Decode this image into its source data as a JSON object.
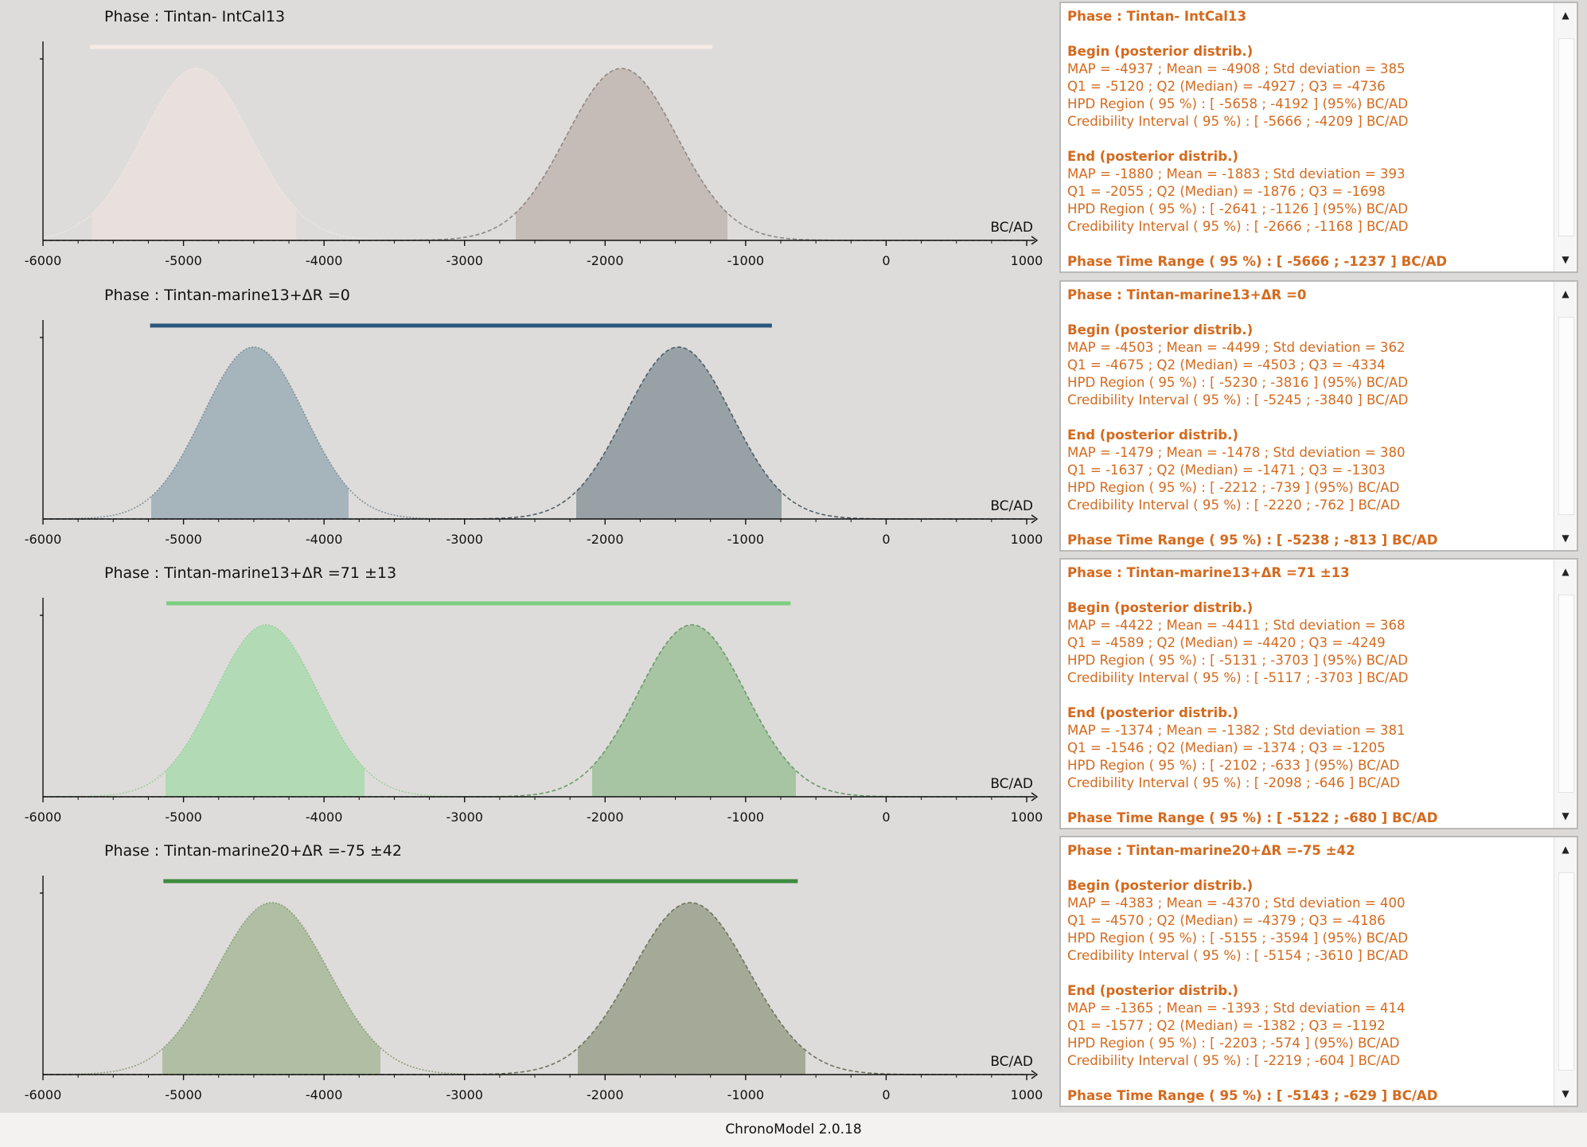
{
  "footer": "ChronoModel 2.0.18",
  "axis_unit": "BC/AD",
  "chart_data": [
    {
      "type": "area",
      "title": "Phase : Tintan- IntCal13",
      "xlabel": "BC/AD",
      "xlim": [
        -6000,
        1000
      ],
      "ticks": [
        "-6000",
        "-5000",
        "-4000",
        "-3000",
        "-2000",
        "-1000",
        "0",
        "1000"
      ],
      "grid": false,
      "range_bar": {
        "from": -5666,
        "to": -1237
      },
      "colors": {
        "bar": "#f6ebe6",
        "begin_fill": "#e9e0dd",
        "begin_line": "#eee6e2",
        "end_fill": "#c5bcb8",
        "end_line": "#8f8784"
      },
      "series": [
        {
          "name": "Begin",
          "mean": -4908,
          "sd": 385,
          "mode": -4937,
          "hpd": [
            -5658,
            -4192
          ]
        },
        {
          "name": "End",
          "mean": -1883,
          "sd": 393,
          "mode": -1880,
          "hpd": [
            -2641,
            -1126
          ]
        }
      ]
    },
    {
      "type": "area",
      "title": "Phase : Tintan-marine13+ΔR =0",
      "xlabel": "BC/AD",
      "xlim": [
        -6000,
        1000
      ],
      "ticks": [
        "-6000",
        "-5000",
        "-4000",
        "-3000",
        "-2000",
        "-1000",
        "0",
        "1000"
      ],
      "grid": false,
      "range_bar": {
        "from": -5238,
        "to": -813
      },
      "colors": {
        "bar": "#2c577d",
        "begin_fill": "#a6b4bb",
        "begin_line": "#7f939f",
        "end_fill": "#97a1a6",
        "end_line": "#4f5e68"
      },
      "series": [
        {
          "name": "Begin",
          "mean": -4499,
          "sd": 362,
          "mode": -4503,
          "hpd": [
            -5230,
            -3816
          ]
        },
        {
          "name": "End",
          "mean": -1478,
          "sd": 380,
          "mode": -1479,
          "hpd": [
            -2212,
            -739
          ]
        }
      ]
    },
    {
      "type": "area",
      "title": "Phase : Tintan-marine13+ΔR =71 ±13",
      "xlabel": "BC/AD",
      "xlim": [
        -6000,
        1000
      ],
      "ticks": [
        "-6000",
        "-5000",
        "-4000",
        "-3000",
        "-2000",
        "-1000",
        "0",
        "1000"
      ],
      "grid": false,
      "range_bar": {
        "from": -5122,
        "to": -680
      },
      "colors": {
        "bar": "#7ccf7e",
        "begin_fill": "#b2dbb5",
        "begin_line": "#9cd09f",
        "end_fill": "#a7c4a3",
        "end_line": "#6a9a6a"
      },
      "series": [
        {
          "name": "Begin",
          "mean": -4411,
          "sd": 368,
          "mode": -4422,
          "hpd": [
            -5131,
            -3703
          ]
        },
        {
          "name": "End",
          "mean": -1382,
          "sd": 381,
          "mode": -1374,
          "hpd": [
            -2102,
            -633
          ]
        }
      ]
    },
    {
      "type": "area",
      "title": "Phase : Tintan-marine20+ΔR =-75 ±42",
      "xlabel": "BC/AD",
      "xlim": [
        -6000,
        1000
      ],
      "ticks": [
        "-6000",
        "-5000",
        "-4000",
        "-3000",
        "-2000",
        "-1000",
        "0",
        "1000"
      ],
      "grid": false,
      "range_bar": {
        "from": -5143,
        "to": -629
      },
      "colors": {
        "bar": "#3f8a3f",
        "begin_fill": "#b0bea3",
        "begin_line": "#8da080",
        "end_fill": "#a5aa98",
        "end_line": "#6b7460"
      },
      "series": [
        {
          "name": "Begin",
          "mean": -4370,
          "sd": 400,
          "mode": -4383,
          "hpd": [
            -5155,
            -3594
          ]
        },
        {
          "name": "End",
          "mean": -1393,
          "sd": 414,
          "mode": -1365,
          "hpd": [
            -2203,
            -574
          ]
        }
      ]
    }
  ],
  "panels": [
    {
      "title": "Phase : Tintan- IntCal13",
      "begin_head": "Begin (posterior distrib.)",
      "begin_lines": [
        "MAP = -4937 ; Mean = -4908 ; Std deviation = 385",
        "Q1 = -5120 ; Q2 (Median) = -4927 ; Q3 = -4736",
        "HPD Region ( 95 %) : [ -5658 ; -4192 ] (95%) BC/AD",
        "Credibility Interval ( 95 %) : [ -5666 ; -4209 ] BC/AD"
      ],
      "end_head": "End (posterior distrib.)",
      "end_lines": [
        "MAP = -1880 ; Mean = -1883 ; Std deviation = 393",
        "Q1 = -2055 ; Q2 (Median) = -1876 ; Q3 = -1698",
        "HPD Region ( 95 %) : [ -2641 ; -1126 ] (95%) BC/AD",
        "Credibility Interval ( 95 %) : [ -2666 ; -1168 ] BC/AD"
      ],
      "range": "Phase Time Range ( 95 %) : [ -5666 ; -1237 ] BC/AD"
    },
    {
      "title": "Phase : Tintan-marine13+ΔR =0",
      "begin_head": "Begin (posterior distrib.)",
      "begin_lines": [
        "MAP = -4503 ; Mean = -4499 ; Std deviation = 362",
        "Q1 = -4675 ; Q2 (Median) = -4503 ; Q3 = -4334",
        "HPD Region ( 95 %) : [ -5230 ; -3816 ] (95%) BC/AD",
        "Credibility Interval ( 95 %) : [ -5245 ; -3840 ] BC/AD"
      ],
      "end_head": "End (posterior distrib.)",
      "end_lines": [
        "MAP = -1479 ; Mean = -1478 ; Std deviation = 380",
        "Q1 = -1637 ; Q2 (Median) = -1471 ; Q3 = -1303",
        "HPD Region ( 95 %) : [ -2212 ; -739 ] (95%) BC/AD",
        "Credibility Interval ( 95 %) : [ -2220 ; -762 ] BC/AD"
      ],
      "range": "Phase Time Range ( 95 %) : [ -5238 ; -813 ] BC/AD"
    },
    {
      "title": "Phase : Tintan-marine13+ΔR =71 ±13",
      "begin_head": "Begin (posterior distrib.)",
      "begin_lines": [
        "MAP = -4422 ; Mean = -4411 ; Std deviation = 368",
        "Q1 = -4589 ; Q2 (Median) = -4420 ; Q3 = -4249",
        "HPD Region ( 95 %) : [ -5131 ; -3703 ] (95%) BC/AD",
        "Credibility Interval ( 95 %) : [ -5117 ; -3703 ] BC/AD"
      ],
      "end_head": "End (posterior distrib.)",
      "end_lines": [
        "MAP = -1374 ; Mean = -1382 ; Std deviation = 381",
        "Q1 = -1546 ; Q2 (Median) = -1374 ; Q3 = -1205",
        "HPD Region ( 95 %) : [ -2102 ; -633 ] (95%) BC/AD",
        "Credibility Interval ( 95 %) : [ -2098 ; -646 ] BC/AD"
      ],
      "range": "Phase Time Range ( 95 %) : [ -5122 ; -680 ] BC/AD"
    },
    {
      "title": "Phase : Tintan-marine20+ΔR =-75 ±42",
      "begin_head": "Begin (posterior distrib.)",
      "begin_lines": [
        "MAP = -4383 ; Mean = -4370 ; Std deviation = 400",
        "Q1 = -4570 ; Q2 (Median) = -4379 ; Q3 = -4186",
        "HPD Region ( 95 %) : [ -5155 ; -3594 ] (95%) BC/AD",
        "Credibility Interval ( 95 %) : [ -5154 ; -3610 ] BC/AD"
      ],
      "end_head": "End (posterior distrib.)",
      "end_lines": [
        "MAP = -1365 ; Mean = -1393 ; Std deviation = 414",
        "Q1 = -1577 ; Q2 (Median) = -1382 ; Q3 = -1192",
        "HPD Region ( 95 %) : [ -2203 ; -574 ] (95%) BC/AD",
        "Credibility Interval ( 95 %) : [ -2219 ; -604 ] BC/AD"
      ],
      "range": "Phase Time Range ( 95 %) : [ -5143 ; -629 ] BC/AD"
    }
  ]
}
